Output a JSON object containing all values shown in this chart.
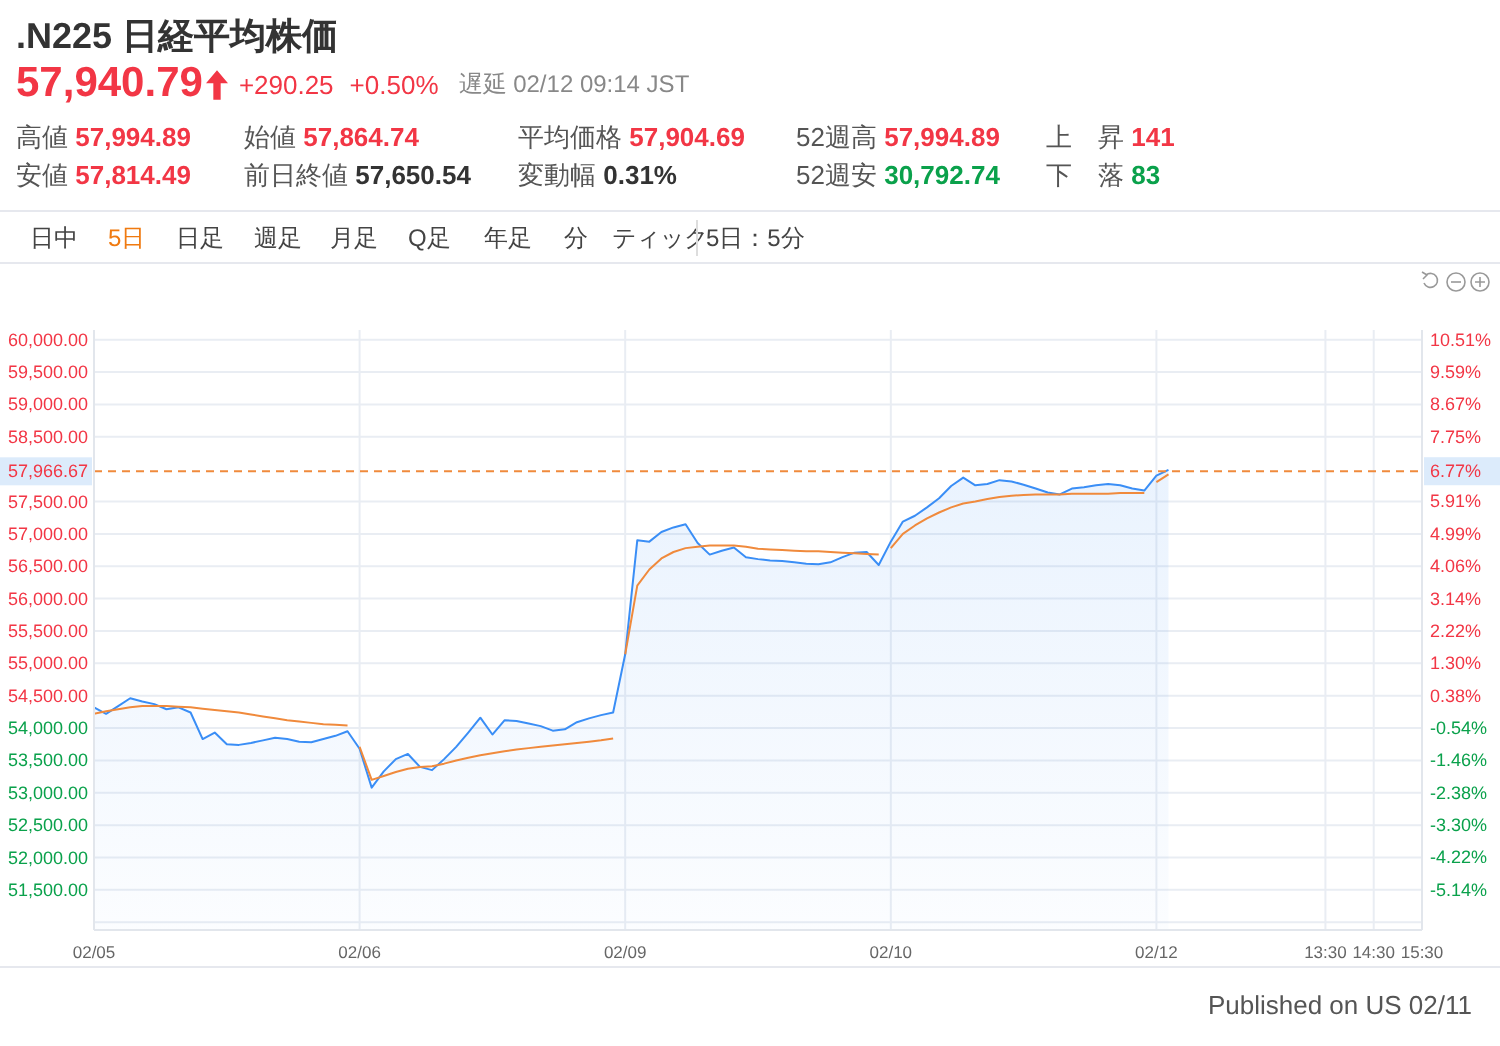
{
  "chart_data": {
    "type": "area",
    "title": ".N225 日経平均株価",
    "annotations": [
      "57,940.79",
      "+290.25",
      "+0.50%",
      "遅延 02/12 09:14 JST",
      "高値",
      "57,994.89",
      "始値",
      "57,864.74",
      "平均価格",
      "57,904.69",
      "52週高",
      "57,994.89",
      "上　昇",
      "141",
      "安値",
      "57,814.49",
      "前日終値",
      "57,650.54",
      "変動幅",
      "0.31%",
      "52週安",
      "30,792.74",
      "下　落",
      "83",
      "日中",
      "5日",
      "日足",
      "週足",
      "月足",
      "Q足",
      "年足",
      "分",
      "ティック",
      "5日：5分",
      "Published on US 02/11"
    ],
    "categories": [
      "02/05",
      null,
      null,
      null,
      null,
      null,
      null,
      null,
      null,
      null,
      null,
      null,
      null,
      null,
      null,
      null,
      null,
      null,
      null,
      null,
      null,
      null,
      "02/06",
      null,
      null,
      null,
      null,
      null,
      null,
      null,
      null,
      null,
      null,
      null,
      null,
      null,
      null,
      null,
      null,
      null,
      null,
      null,
      null,
      null,
      "02/09",
      null,
      null,
      null,
      null,
      null,
      null,
      null,
      null,
      null,
      null,
      null,
      null,
      null,
      null,
      null,
      null,
      null,
      null,
      null,
      null,
      null,
      "02/10",
      null,
      null,
      null,
      null,
      null,
      null,
      null,
      null,
      null,
      null,
      null,
      null,
      null,
      null,
      null,
      null,
      null,
      null,
      null,
      null,
      null,
      "02/12",
      null,
      null,
      null,
      null,
      null,
      null,
      null,
      null,
      null,
      null,
      null,
      null,
      null,
      "13:30",
      null,
      null,
      null,
      "14:30",
      null,
      null,
      null,
      "15:30"
    ],
    "series": [
      {
        "color": "#3a8ef6",
        "values": [
          54320,
          54220,
          54340,
          54460,
          54410,
          54370,
          54290,
          54320,
          54240,
          53830,
          53930,
          53750,
          53740,
          53770,
          53810,
          53850,
          53830,
          53790,
          53780,
          53830,
          53880,
          53950,
          53680,
          53080,
          53330,
          53520,
          53600,
          53400,
          53350,
          53520,
          53710,
          53930,
          54160,
          53900,
          54120,
          54110,
          54070,
          54030,
          53960,
          53980,
          54090,
          54150,
          54200,
          54240,
          55140,
          56900,
          56880,
          57030,
          57100,
          57150,
          56860,
          56680,
          56740,
          56790,
          56640,
          56610,
          56590,
          56580,
          56560,
          56540,
          56530,
          56560,
          56640,
          56710,
          56720,
          56520,
          56880,
          57190,
          57280,
          57410,
          57550,
          57740,
          57870,
          57750,
          57770,
          57830,
          57810,
          57760,
          57700,
          57640,
          57610,
          57700,
          57720,
          57750,
          57770,
          57750,
          57700,
          57670,
          57900,
          57990,
          null,
          null,
          null,
          null,
          null,
          null,
          null,
          null,
          null,
          null,
          null,
          null,
          null,
          null,
          null,
          null,
          null,
          null,
          null,
          null,
          null
        ]
      },
      {
        "type": "line",
        "color": "#f08a3c",
        "values": [
          54220,
          54260,
          54290,
          54320,
          54340,
          54340,
          54340,
          54330,
          54320,
          54300,
          54280,
          54260,
          54240,
          54210,
          54180,
          54150,
          54120,
          54100,
          54080,
          54060,
          54050,
          54040,
          null,
          null,
          null,
          null,
          null,
          null,
          null,
          null,
          null,
          null,
          null,
          null,
          null,
          null,
          null,
          null,
          null,
          null,
          null,
          null,
          null,
          null,
          null,
          null,
          null,
          null,
          null,
          null,
          null,
          null,
          null,
          null,
          null,
          null,
          null,
          null,
          null,
          null,
          null,
          null,
          null,
          null,
          null,
          null,
          null,
          null,
          null,
          null,
          null,
          null,
          null,
          null,
          null,
          null,
          null,
          null,
          null,
          null,
          null,
          null,
          null,
          null,
          null,
          null,
          null,
          null,
          null,
          null,
          null,
          null,
          null,
          null,
          null,
          null,
          null,
          null,
          null,
          null,
          null,
          null,
          null,
          null,
          null,
          null,
          null,
          null,
          null,
          null,
          null
        ]
      },
      {
        "type": "line",
        "color": "#f08a3c",
        "values": [
          null,
          null,
          null,
          null,
          null,
          null,
          null,
          null,
          null,
          null,
          null,
          null,
          null,
          null,
          null,
          null,
          null,
          null,
          null,
          null,
          null,
          null,
          53710,
          53200,
          53260,
          53320,
          53370,
          53400,
          53410,
          53450,
          53500,
          53540,
          53580,
          53610,
          53640,
          53670,
          53690,
          53710,
          53730,
          53750,
          53770,
          53790,
          53810,
          53840,
          null,
          null,
          null,
          null,
          null,
          null,
          null,
          null,
          null,
          null,
          null,
          null,
          null,
          null,
          null,
          null,
          null,
          null,
          null,
          null,
          null,
          null,
          null,
          null,
          null,
          null,
          null,
          null,
          null,
          null,
          null,
          null,
          null,
          null,
          null,
          null,
          null,
          null,
          null,
          null,
          null,
          null,
          null,
          null,
          null,
          null,
          null,
          null,
          null,
          null,
          null,
          null,
          null,
          null,
          null,
          null,
          null,
          null,
          null,
          null,
          null,
          null,
          null,
          null,
          null,
          null,
          null
        ]
      },
      {
        "type": "line",
        "color": "#f08a3c",
        "values": [
          null,
          null,
          null,
          null,
          null,
          null,
          null,
          null,
          null,
          null,
          null,
          null,
          null,
          null,
          null,
          null,
          null,
          null,
          null,
          null,
          null,
          null,
          null,
          null,
          null,
          null,
          null,
          null,
          null,
          null,
          null,
          null,
          null,
          null,
          null,
          null,
          null,
          null,
          null,
          null,
          null,
          null,
          null,
          null,
          55140,
          56200,
          56450,
          56620,
          56720,
          56780,
          56800,
          56820,
          56820,
          56820,
          56800,
          56770,
          56760,
          56750,
          56740,
          56730,
          56730,
          56720,
          56710,
          56700,
          56690,
          56680,
          null,
          null,
          null,
          null,
          null,
          null,
          null,
          null,
          null,
          null,
          null,
          null,
          null,
          null,
          null,
          null,
          null,
          null,
          null,
          null,
          null,
          null,
          null,
          null,
          null,
          null,
          null,
          null,
          null,
          null,
          null,
          null,
          null,
          null,
          null,
          null,
          null,
          null,
          null,
          null,
          null,
          null,
          null,
          null,
          null
        ]
      },
      {
        "type": "line",
        "color": "#f08a3c",
        "values": [
          null,
          null,
          null,
          null,
          null,
          null,
          null,
          null,
          null,
          null,
          null,
          null,
          null,
          null,
          null,
          null,
          null,
          null,
          null,
          null,
          null,
          null,
          null,
          null,
          null,
          null,
          null,
          null,
          null,
          null,
          null,
          null,
          null,
          null,
          null,
          null,
          null,
          null,
          null,
          null,
          null,
          null,
          null,
          null,
          null,
          null,
          null,
          null,
          null,
          null,
          null,
          null,
          null,
          null,
          null,
          null,
          null,
          null,
          null,
          null,
          null,
          null,
          null,
          null,
          null,
          null,
          56780,
          57000,
          57130,
          57240,
          57330,
          57410,
          57470,
          57500,
          57540,
          57570,
          57590,
          57600,
          57610,
          57610,
          57610,
          57620,
          57620,
          57620,
          57620,
          57630,
          57630,
          57630,
          null,
          null,
          null,
          null,
          null,
          null,
          null,
          null,
          null,
          null,
          null,
          null,
          null,
          null,
          null,
          null,
          null,
          null,
          null,
          null,
          null,
          null,
          null
        ]
      },
      {
        "type": "line",
        "color": "#f08a3c",
        "values": [
          null,
          null,
          null,
          null,
          null,
          null,
          null,
          null,
          null,
          null,
          null,
          null,
          null,
          null,
          null,
          null,
          null,
          null,
          null,
          null,
          null,
          null,
          null,
          null,
          null,
          null,
          null,
          null,
          null,
          null,
          null,
          null,
          null,
          null,
          null,
          null,
          null,
          null,
          null,
          null,
          null,
          null,
          null,
          null,
          null,
          null,
          null,
          null,
          null,
          null,
          null,
          null,
          null,
          null,
          null,
          null,
          null,
          null,
          null,
          null,
          null,
          null,
          null,
          null,
          null,
          null,
          null,
          null,
          null,
          null,
          null,
          null,
          null,
          null,
          null,
          null,
          null,
          null,
          null,
          null,
          null,
          null,
          null,
          null,
          null,
          null,
          null,
          null,
          57800,
          57920,
          null,
          null,
          null,
          null,
          null,
          null,
          null,
          null,
          null,
          null,
          null,
          null,
          null,
          null,
          null,
          null,
          null,
          null,
          null,
          null,
          null
        ]
      }
    ],
    "ylim": [
      50880,
      60150
    ],
    "yticks": [
      {
        "value": 60000,
        "label": "60,000.00"
      },
      {
        "value": 59500,
        "label": "59,500.00"
      },
      {
        "value": 59000,
        "label": "59,000.00"
      },
      {
        "value": 58500,
        "label": "58,500.00"
      },
      {
        "value": 57500,
        "label": "57,500.00"
      },
      {
        "value": 57000,
        "label": "57,000.00"
      },
      {
        "value": 56500,
        "label": "56,500.00"
      },
      {
        "value": 56000,
        "label": "56,000.00"
      },
      {
        "value": 55500,
        "label": "55,500.00"
      },
      {
        "value": 55000,
        "label": "55,000.00"
      },
      {
        "value": 54500,
        "label": "54,500.00"
      },
      {
        "value": 54000,
        "label": "54,000.00"
      },
      {
        "value": 53500,
        "label": "53,500.00"
      },
      {
        "value": 53000,
        "label": "53,000.00"
      },
      {
        "value": 52500,
        "label": "52,500.00"
      },
      {
        "value": 52000,
        "label": "52,000.00"
      },
      {
        "value": 51500,
        "label": "51,500.00"
      },
      {
        "value": 51000,
        "label": null
      }
    ],
    "y2lim": [
      -6.29,
      10.79
    ],
    "y2ticks": [
      {
        "value": 10.51,
        "label": "10.51%"
      },
      {
        "value": 9.59,
        "label": "9.59%"
      },
      {
        "value": 8.67,
        "label": "8.67%"
      },
      {
        "value": 7.75,
        "label": "7.75%"
      },
      {
        "value": 6.77,
        "label": "6.77%"
      },
      {
        "value": 5.91,
        "label": "5.91%"
      },
      {
        "value": 4.99,
        "label": "4.99%"
      },
      {
        "value": 4.06,
        "label": "4.06%"
      },
      {
        "value": 3.14,
        "label": "3.14%"
      },
      {
        "value": 2.22,
        "label": "2.22%"
      },
      {
        "value": 1.3,
        "label": "1.30%"
      },
      {
        "value": 0.38,
        "label": "0.38%"
      },
      {
        "value": -0.54,
        "label": "-0.54%"
      },
      {
        "value": -1.46,
        "label": "-1.46%"
      },
      {
        "value": -2.38,
        "label": "-2.38%"
      },
      {
        "value": -3.3,
        "label": "-3.30%"
      },
      {
        "value": -4.22,
        "label": "-4.22%"
      },
      {
        "value": -5.14,
        "label": "-5.14%"
      }
    ],
    "ref_lines": [
      {
        "axis": "y",
        "value": 57966.67,
        "label": "57,966.67",
        "color": "#f08a3c",
        "line_style": "dashed"
      }
    ],
    "grid": true
  }
}
